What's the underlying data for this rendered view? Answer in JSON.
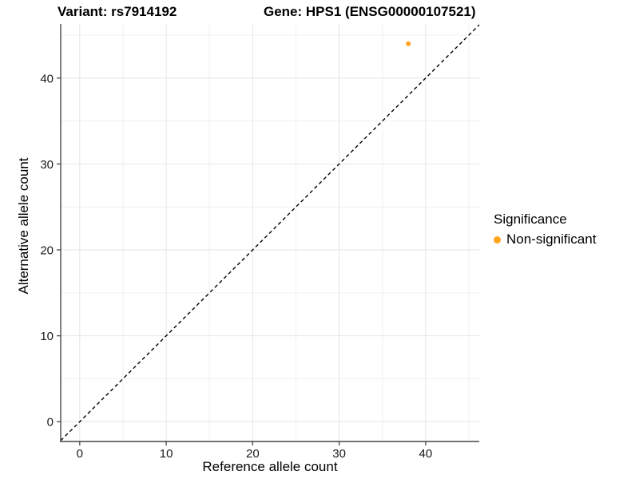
{
  "header": {
    "variant_title": "Variant: rs7914192",
    "gene_title": "Gene: HPS1 (ENSG00000107521)"
  },
  "chart_data": {
    "type": "scatter",
    "title": "Variant: rs7914192   Gene: HPS1 (ENSG00000107521)",
    "xlabel": "Reference allele count",
    "ylabel": "Alternative allele count",
    "xlim": [
      -2.2,
      46.2
    ],
    "ylim": [
      -2.3,
      46.3
    ],
    "x_major_ticks": [
      0,
      10,
      20,
      30,
      40
    ],
    "x_minor_ticks": [
      5,
      15,
      25,
      35,
      45
    ],
    "y_major_ticks": [
      0,
      10,
      20,
      30,
      40
    ],
    "y_minor_ticks": [
      5,
      15,
      25,
      35,
      45
    ],
    "grid": "major and minor gridlines, light gray on white panel; axis lines bottom-left only",
    "identity_line": {
      "type": "y=x",
      "style": "dashed",
      "color": "#000000"
    },
    "series": [
      {
        "name": "Non-significant",
        "color": "#FFA21C",
        "point_radius": 3,
        "points": [
          {
            "x": 38,
            "y": 44
          }
        ]
      }
    ],
    "legend_position": "right"
  },
  "legend": {
    "title": "Significance",
    "items": [
      {
        "label": "Non-significant",
        "color": "#FFA21C"
      }
    ]
  },
  "colors": {
    "background": "#FFFFFF",
    "point_orange": "#FFA21C",
    "axis_line": "#464646",
    "grid_major": "#E5E5E5",
    "grid_minor": "#F0F0F0",
    "tick_text": "#1A1A1A",
    "text": "#000000"
  }
}
